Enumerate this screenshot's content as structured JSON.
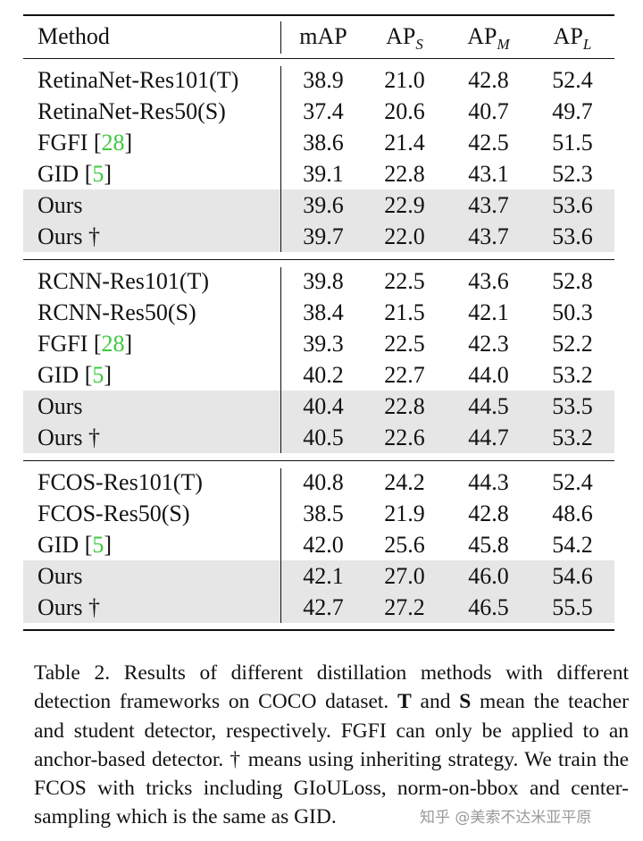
{
  "table": {
    "headers": [
      "Method",
      "mAP",
      "AP",
      "AP",
      "AP"
    ],
    "header_subscripts": [
      "",
      "",
      "S",
      "M",
      "L"
    ],
    "groups": [
      {
        "rows": [
          {
            "method": "RetinaNet-Res101(T)",
            "cite": "",
            "suffix": "",
            "values": [
              "38.9",
              "21.0",
              "42.8",
              "52.4"
            ],
            "shaded": false
          },
          {
            "method": "RetinaNet-Res50(S)",
            "cite": "",
            "suffix": "",
            "values": [
              "37.4",
              "20.6",
              "40.7",
              "49.7"
            ],
            "shaded": false
          },
          {
            "method": "FGFI [",
            "cite": "28",
            "suffix": "]",
            "values": [
              "38.6",
              "21.4",
              "42.5",
              "51.5"
            ],
            "shaded": false
          },
          {
            "method": "GID [",
            "cite": "5",
            "suffix": "]",
            "values": [
              "39.1",
              "22.8",
              "43.1",
              "52.3"
            ],
            "shaded": false
          },
          {
            "method": "Ours",
            "cite": "",
            "suffix": "",
            "values": [
              "39.6",
              "22.9",
              "43.7",
              "53.6"
            ],
            "shaded": true
          },
          {
            "method": "Ours †",
            "cite": "",
            "suffix": "",
            "values": [
              "39.7",
              "22.0",
              "43.7",
              "53.6"
            ],
            "shaded": true
          }
        ]
      },
      {
        "rows": [
          {
            "method": "RCNN-Res101(T)",
            "cite": "",
            "suffix": "",
            "values": [
              "39.8",
              "22.5",
              "43.6",
              "52.8"
            ],
            "shaded": false
          },
          {
            "method": "RCNN-Res50(S)",
            "cite": "",
            "suffix": "",
            "values": [
              "38.4",
              "21.5",
              "42.1",
              "50.3"
            ],
            "shaded": false
          },
          {
            "method": "FGFI [",
            "cite": "28",
            "suffix": "]",
            "values": [
              "39.3",
              "22.5",
              "42.3",
              "52.2"
            ],
            "shaded": false
          },
          {
            "method": "GID [",
            "cite": "5",
            "suffix": "]",
            "values": [
              "40.2",
              "22.7",
              "44.0",
              "53.2"
            ],
            "shaded": false
          },
          {
            "method": "Ours",
            "cite": "",
            "suffix": "",
            "values": [
              "40.4",
              "22.8",
              "44.5",
              "53.5"
            ],
            "shaded": true
          },
          {
            "method": "Ours †",
            "cite": "",
            "suffix": "",
            "values": [
              "40.5",
              "22.6",
              "44.7",
              "53.2"
            ],
            "shaded": true
          }
        ]
      },
      {
        "rows": [
          {
            "method": "FCOS-Res101(T)",
            "cite": "",
            "suffix": "",
            "values": [
              "40.8",
              "24.2",
              "44.3",
              "52.4"
            ],
            "shaded": false
          },
          {
            "method": "FCOS-Res50(S)",
            "cite": "",
            "suffix": "",
            "values": [
              "38.5",
              "21.9",
              "42.8",
              "48.6"
            ],
            "shaded": false
          },
          {
            "method": "GID [",
            "cite": "5",
            "suffix": "]",
            "values": [
              "42.0",
              "25.6",
              "45.8",
              "54.2"
            ],
            "shaded": false
          },
          {
            "method": "Ours",
            "cite": "",
            "suffix": "",
            "values": [
              "42.1",
              "27.0",
              "46.0",
              "54.6"
            ],
            "shaded": true
          },
          {
            "method": "Ours †",
            "cite": "",
            "suffix": "",
            "values": [
              "42.7",
              "27.2",
              "46.5",
              "55.5"
            ],
            "shaded": true
          }
        ]
      }
    ]
  },
  "caption": {
    "part1": "Table 2.  Results of different distillation methods with different detection frameworks on COCO dataset. ",
    "bold_t": "T",
    "and": " and ",
    "bold_s": "S",
    "part2": " mean the teacher and student detector, respectively.  FGFI can only be applied to an anchor-based detector. † means using inheriting strategy. We train the FCOS with tricks including GIoULoss, norm-on-bbox and center-sampling which is the same as GID."
  },
  "watermark": "知乎 @美索不达米亚平原"
}
